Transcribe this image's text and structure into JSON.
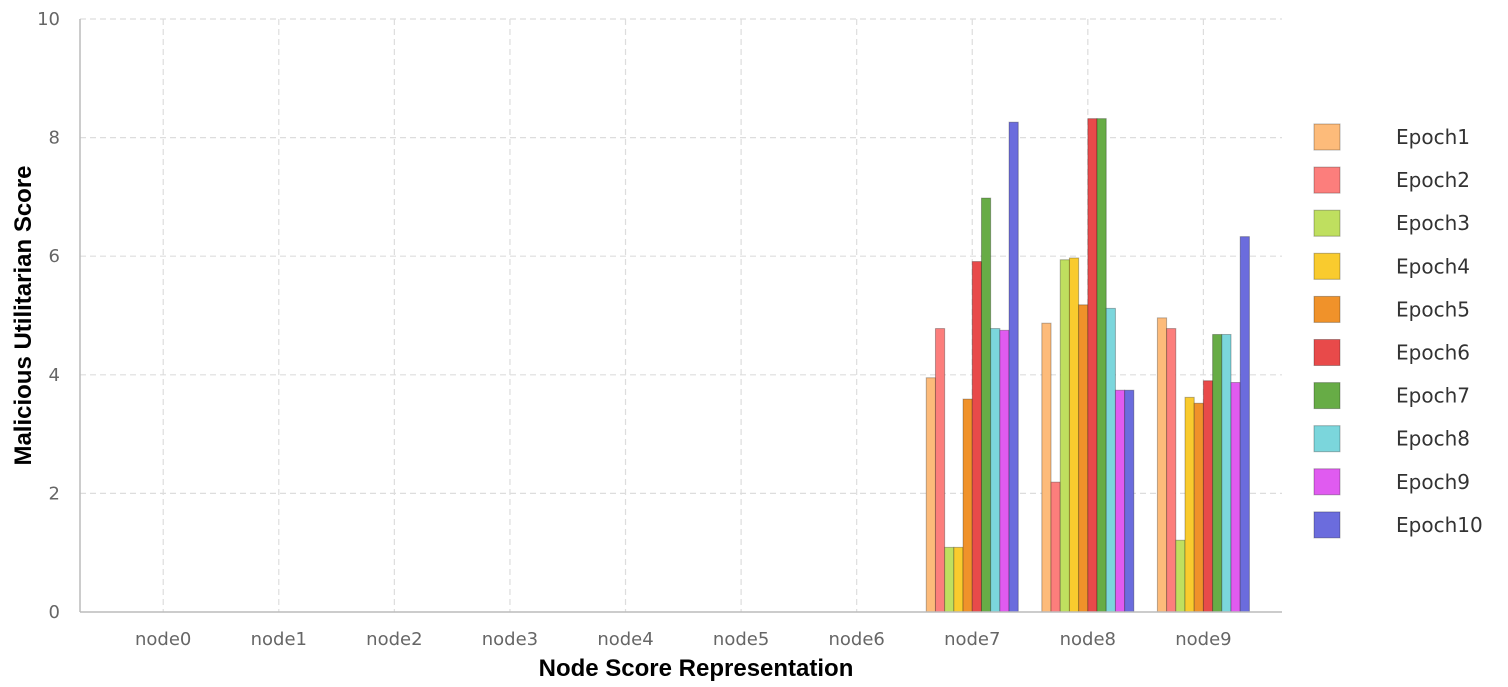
{
  "chart_data": {
    "type": "bar",
    "title": "",
    "xlabel": "Node Score Representation",
    "ylabel": "Malicious Utilitarian Score",
    "ylim": [
      0,
      10
    ],
    "yticks": [
      0,
      2,
      4,
      6,
      8,
      10
    ],
    "grid": true,
    "legend_position": "right",
    "categories": [
      "node0",
      "node1",
      "node2",
      "node3",
      "node4",
      "node5",
      "node6",
      "node7",
      "node8",
      "node9"
    ],
    "series": [
      {
        "name": "Epoch1",
        "color": "#FDBB7A",
        "values": [
          0,
          0,
          0,
          0,
          0,
          0,
          0,
          3.95,
          4.87,
          4.96
        ]
      },
      {
        "name": "Epoch2",
        "color": "#FC7E7C",
        "values": [
          0,
          0,
          0,
          0,
          0,
          0,
          0,
          4.78,
          2.19,
          4.78
        ]
      },
      {
        "name": "Epoch3",
        "color": "#BFDF5F",
        "values": [
          0,
          0,
          0,
          0,
          0,
          0,
          0,
          1.09,
          5.94,
          1.21
        ]
      },
      {
        "name": "Epoch4",
        "color": "#F9CB2E",
        "values": [
          0,
          0,
          0,
          0,
          0,
          0,
          0,
          1.09,
          5.97,
          3.62
        ]
      },
      {
        "name": "Epoch5",
        "color": "#F0922A",
        "values": [
          0,
          0,
          0,
          0,
          0,
          0,
          0,
          3.59,
          5.18,
          3.52
        ]
      },
      {
        "name": "Epoch6",
        "color": "#E84A4A",
        "values": [
          0,
          0,
          0,
          0,
          0,
          0,
          0,
          5.91,
          8.32,
          3.9
        ]
      },
      {
        "name": "Epoch7",
        "color": "#67AC46",
        "values": [
          0,
          0,
          0,
          0,
          0,
          0,
          0,
          6.98,
          8.32,
          4.68
        ]
      },
      {
        "name": "Epoch8",
        "color": "#7BD6DC",
        "values": [
          0,
          0,
          0,
          0,
          0,
          0,
          0,
          4.78,
          5.12,
          4.68
        ]
      },
      {
        "name": "Epoch9",
        "color": "#E05BF0",
        "values": [
          0,
          0,
          0,
          0,
          0,
          0,
          0,
          4.75,
          3.74,
          3.87
        ]
      },
      {
        "name": "Epoch10",
        "color": "#6B6CDD",
        "values": [
          0,
          0,
          0,
          0,
          0,
          0,
          0,
          8.26,
          3.74,
          6.33
        ]
      }
    ]
  }
}
